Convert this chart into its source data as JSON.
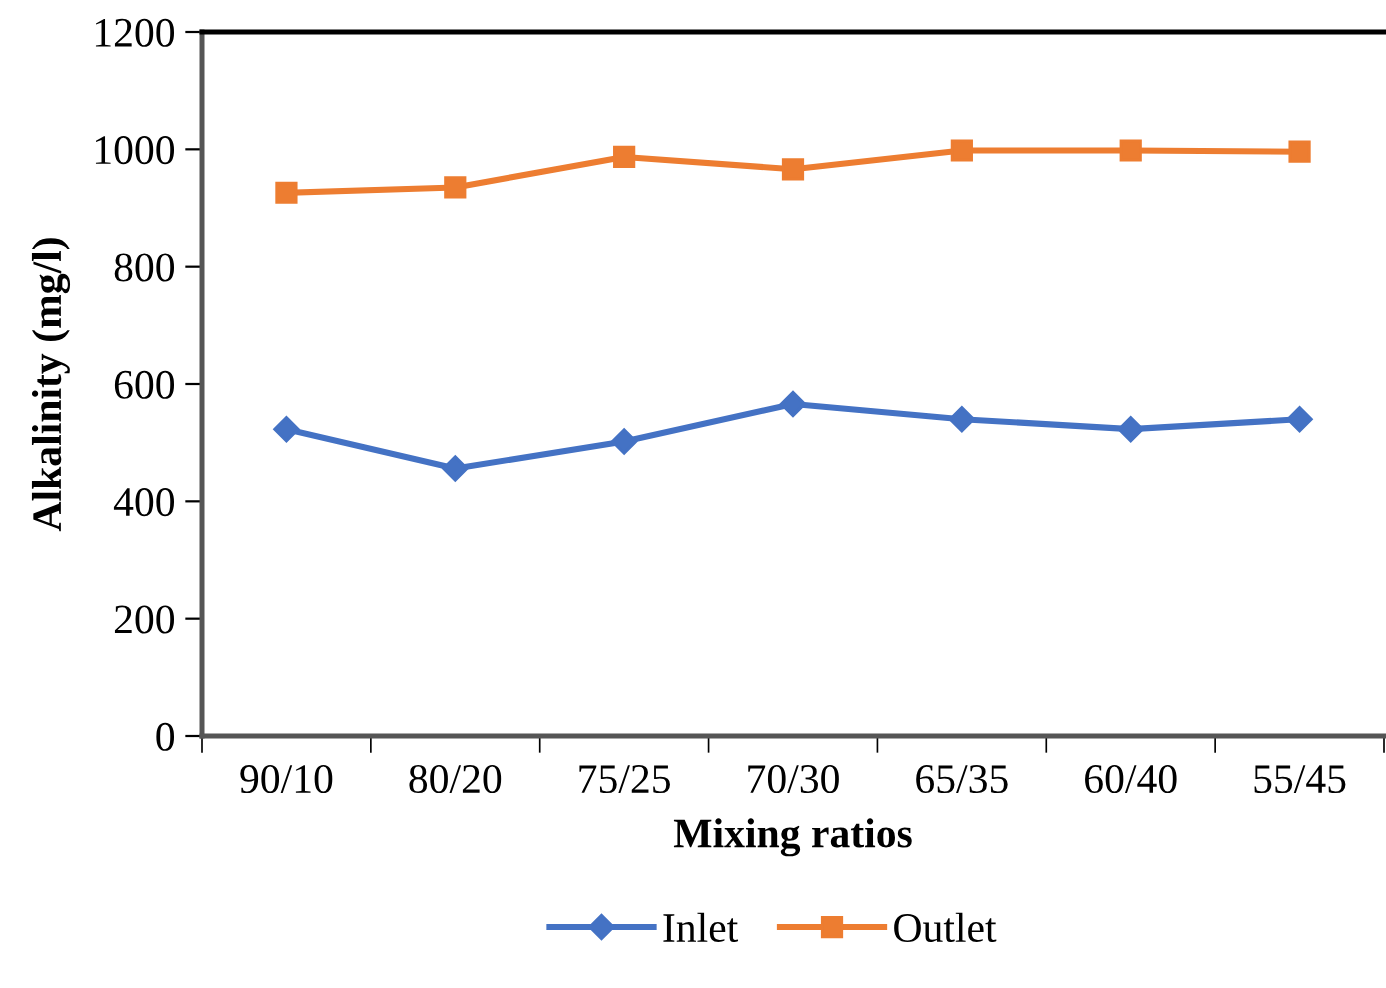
{
  "chart_data": {
    "type": "line",
    "xlabel": "Mixing ratios",
    "ylabel": "Alkalinity (mg/l)",
    "categories": [
      "90/10",
      "80/20",
      "75/25",
      "70/30",
      "65/35",
      "60/40",
      "55/45"
    ],
    "series": [
      {
        "name": "Inlet",
        "color": "#4472c4",
        "marker": "diamond",
        "values": [
          523,
          456,
          502,
          566,
          540,
          523,
          540
        ]
      },
      {
        "name": "Outlet",
        "color": "#ed7d31",
        "marker": "square",
        "values": [
          926,
          935,
          987,
          966,
          998,
          998,
          996
        ]
      }
    ],
    "ylim": [
      0,
      1200
    ],
    "yticks": [
      0,
      200,
      400,
      600,
      800,
      1000,
      1200
    ],
    "grid": false,
    "legend": "bottom",
    "line_style": "solid"
  }
}
